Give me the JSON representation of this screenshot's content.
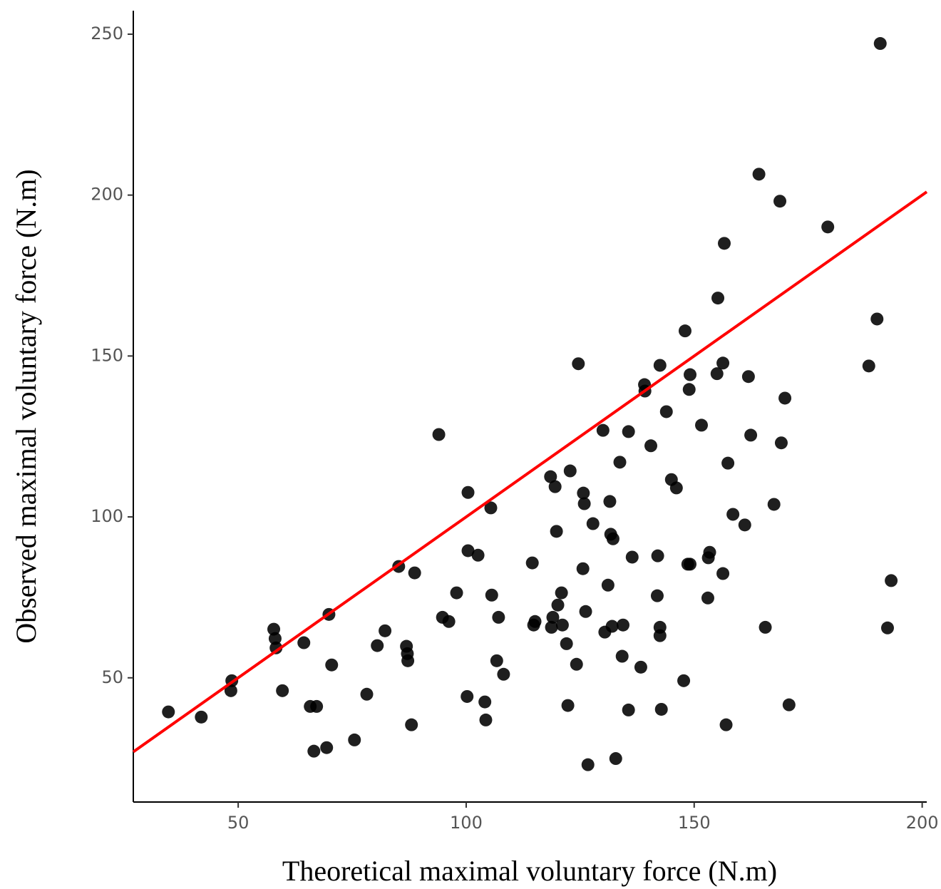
{
  "chart_data": {
    "type": "scatter",
    "x_label": "Theoretical maximal voluntary force (N.m)",
    "y_label": "Observed maximal voluntary force (N.m)",
    "xlim": [
      27,
      201
    ],
    "ylim": [
      11.4,
      257.3
    ],
    "xticks": [
      50,
      100,
      150,
      200
    ],
    "yticks": [
      50,
      100,
      150,
      200,
      250
    ],
    "series": [
      {
        "color": "#000000",
        "x": [
          34.7,
          41.9,
          48.6,
          48.4,
          57.8,
          58.1,
          58.3,
          59.7,
          64.4,
          65.8,
          67.2,
          66.6,
          69.4,
          69.9,
          70.5,
          75.5,
          78.2,
          80.5,
          82.2,
          85.2,
          86.9,
          87.1,
          87.2,
          88.0,
          88.7,
          94.0,
          94.8,
          96.2,
          97.9,
          100.2,
          100.4,
          100.4,
          102.6,
          104.1,
          104.3,
          105.4,
          105.6,
          106.7,
          107.1,
          108.2,
          114.5,
          114.8,
          115.1,
          118.5,
          119.0,
          118.7,
          119.5,
          119.8,
          120.1,
          120.9,
          121.1,
          122.0,
          122.3,
          122.8,
          124.6,
          124.2,
          125.7,
          125.9,
          125.6,
          126.2,
          126.7,
          127.8,
          130.0,
          131.1,
          130.4,
          131.5,
          131.7,
          132.2,
          132.0,
          132.8,
          133.7,
          134.2,
          134.4,
          135.6,
          135.6,
          136.4,
          138.3,
          139.1,
          139.2,
          140.5,
          142.0,
          141.9,
          142.5,
          142.5,
          142.5,
          142.8,
          143.9,
          145.0,
          146.1,
          147.7,
          148.0,
          148.6,
          149.1,
          148.9,
          149.1,
          151.6,
          153.0,
          153.4,
          153.1,
          155.2,
          155.0,
          156.3,
          156.3,
          156.6,
          157.0,
          157.4,
          158.5,
          161.1,
          161.9,
          162.4,
          164.2,
          165.6,
          167.5,
          168.8,
          169.1,
          169.9,
          170.8,
          179.3,
          188.3,
          190.1,
          190.8,
          192.4,
          193.2
        ],
        "values": [
          39.4,
          37.8,
          49.1,
          46.0,
          65.1,
          62.2,
          59.3,
          46.0,
          60.9,
          41.1,
          41.1,
          27.2,
          28.3,
          69.7,
          54.0,
          30.7,
          44.9,
          60.0,
          64.6,
          84.6,
          59.8,
          57.5,
          55.3,
          35.4,
          82.6,
          125.6,
          68.8,
          67.5,
          76.4,
          44.2,
          107.6,
          89.5,
          88.1,
          42.5,
          36.9,
          102.8,
          75.7,
          55.3,
          68.8,
          51.1,
          85.7,
          66.4,
          67.5,
          112.5,
          68.8,
          65.7,
          109.4,
          95.5,
          72.6,
          76.4,
          66.4,
          60.6,
          41.4,
          114.3,
          147.6,
          54.2,
          107.4,
          104.1,
          83.9,
          70.6,
          23.0,
          97.9,
          126.9,
          78.8,
          64.2,
          104.8,
          94.6,
          93.2,
          66.0,
          24.9,
          117.0,
          56.7,
          66.4,
          126.5,
          40.0,
          87.5,
          53.3,
          141.1,
          139.1,
          122.1,
          87.9,
          75.5,
          147.1,
          65.7,
          63.1,
          40.2,
          132.7,
          111.6,
          109.0,
          49.1,
          157.8,
          85.3,
          144.2,
          139.6,
          85.3,
          128.5,
          74.8,
          89.0,
          87.3,
          168.0,
          144.5,
          147.8,
          82.4,
          185.0,
          35.4,
          116.7,
          100.8,
          97.5,
          143.6,
          125.4,
          206.5,
          65.7,
          103.9,
          198.1,
          123.0,
          136.9,
          41.6,
          190.1,
          146.9,
          161.5,
          247.1,
          65.5,
          80.2
        ]
      }
    ],
    "fit_line": {
      "color": "#ff0000",
      "x": [
        27,
        201
      ],
      "y": [
        27,
        201
      ]
    }
  }
}
